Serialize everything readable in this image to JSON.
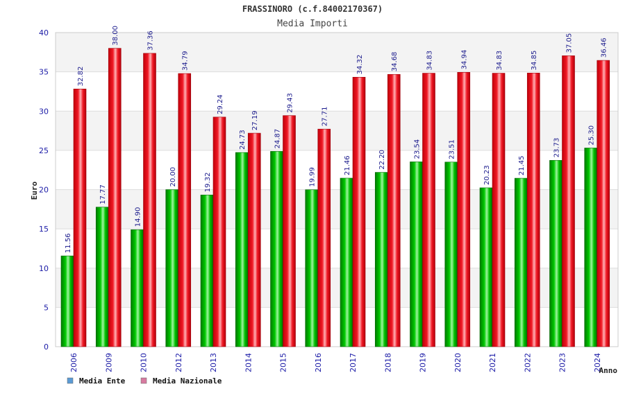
{
  "chart_data": {
    "type": "bar",
    "title": "FRASSINORO (c.f.84002170367)",
    "subtitle": "Media Importi",
    "xlabel": "Anno",
    "ylabel": "Euro",
    "ylim": [
      0,
      40
    ],
    "yticks": [
      0,
      5,
      10,
      15,
      20,
      25,
      30,
      35,
      40
    ],
    "grid": true,
    "legend_position": "bottom-left",
    "categories": [
      "2006",
      "2009",
      "2010",
      "2012",
      "2013",
      "2014",
      "2015",
      "2016",
      "2017",
      "2018",
      "2019",
      "2020",
      "2021",
      "2022",
      "2023",
      "2024"
    ],
    "series": [
      {
        "name": "Media Ente",
        "color": "#00b000",
        "legend_color": "#5b9bd5",
        "values": [
          11.56,
          17.77,
          14.9,
          20.0,
          19.32,
          24.73,
          24.87,
          19.99,
          21.46,
          22.2,
          23.54,
          23.51,
          20.23,
          21.45,
          23.73,
          25.3
        ],
        "labels": [
          "11.56",
          "17.77",
          "14.90",
          "20.00",
          "19.32",
          "24.73",
          "24.87",
          "19.99",
          "21.46",
          "22.20",
          "23.54",
          "23.51",
          "20.23",
          "21.45",
          "23.73",
          "25.30"
        ]
      },
      {
        "name": "Media Nazionale",
        "color": "#e0101c",
        "legend_color": "#d77ba0",
        "values": [
          32.82,
          38.0,
          37.36,
          34.79,
          29.24,
          27.19,
          29.43,
          27.71,
          34.32,
          34.68,
          34.83,
          34.94,
          34.83,
          34.85,
          37.05,
          36.46
        ],
        "labels": [
          "32.82",
          "38.00",
          "37.36",
          "34.79",
          "29.24",
          "27.19",
          "29.43",
          "27.71",
          "34.32",
          "34.68",
          "34.83",
          "34.94",
          "34.83",
          "34.85",
          "37.05",
          "36.46"
        ]
      }
    ]
  }
}
